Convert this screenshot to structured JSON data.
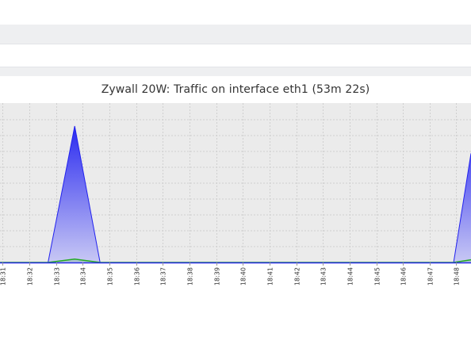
{
  "chart_data": {
    "type": "area",
    "title": "Zywall 20W: Traffic on interface eth1 (53m 22s)",
    "x_ticks": [
      "18:31",
      "18:32",
      "18:33",
      "18:34",
      "18:35",
      "18:36",
      "18:37",
      "18:38",
      "18:39",
      "18:40",
      "18:41",
      "18:42",
      "18:43",
      "18:44",
      "18:45",
      "18:46",
      "18:47",
      "18:48"
    ],
    "x_range_minutes": [
      30.9,
      48.55
    ],
    "y_range": [
      0,
      100
    ],
    "grid": true,
    "series": [
      {
        "color": "#2222ee",
        "x": [
          30.9,
          32.7,
          33.7,
          34.65,
          36.7,
          37.7,
          38.65,
          40.7,
          41.7,
          42.65,
          44.7,
          45.7,
          46.7,
          47.9,
          48.55
        ],
        "values": [
          0,
          0,
          100,
          0,
          0,
          0,
          0,
          0,
          0,
          0,
          0,
          0,
          0,
          0,
          80
        ]
      },
      {
        "color": "#22aa22",
        "x": [
          30.9,
          32.7,
          33.7,
          34.65,
          36.7,
          37.7,
          38.65,
          40.7,
          41.7,
          42.65,
          44.7,
          45.7,
          46.7,
          47.9,
          48.55
        ],
        "values": [
          0,
          0,
          2.5,
          0,
          0,
          0,
          0,
          0,
          0,
          0,
          0,
          0,
          0,
          0,
          2
        ]
      }
    ]
  }
}
